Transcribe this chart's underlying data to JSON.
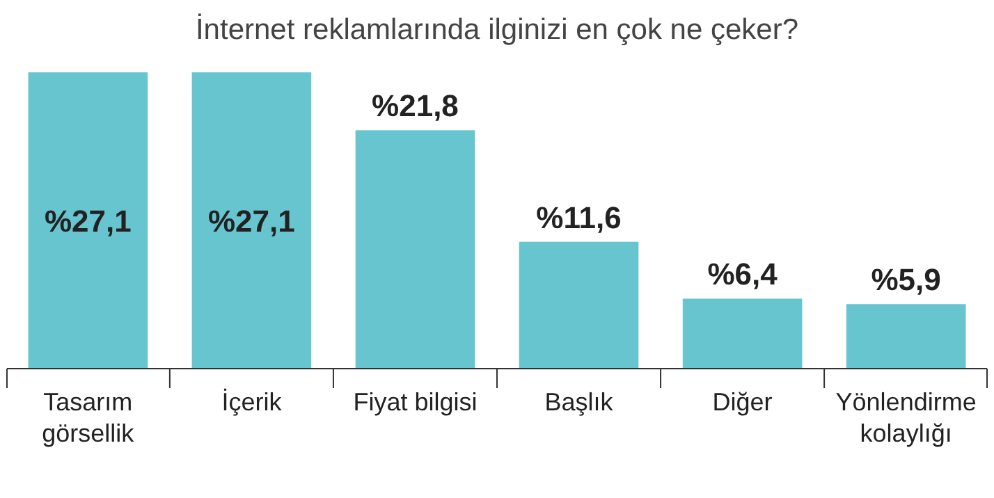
{
  "chart_data": {
    "type": "bar",
    "title": "İnternet reklamlarında ilginizi en çok ne çeker?",
    "categories": [
      "Tasarım görsellik",
      "İçerik",
      "Fiyat bilgisi",
      "Başlık",
      "Diğer",
      "Yönlendirme kolaylığı"
    ],
    "values": [
      27.1,
      27.1,
      21.8,
      11.6,
      6.4,
      5.9
    ],
    "value_labels": [
      "%27,1",
      "%27,1",
      "%21,8",
      "%11,6",
      "%6,4",
      "%5,9"
    ],
    "color": "#67c5cf"
  }
}
